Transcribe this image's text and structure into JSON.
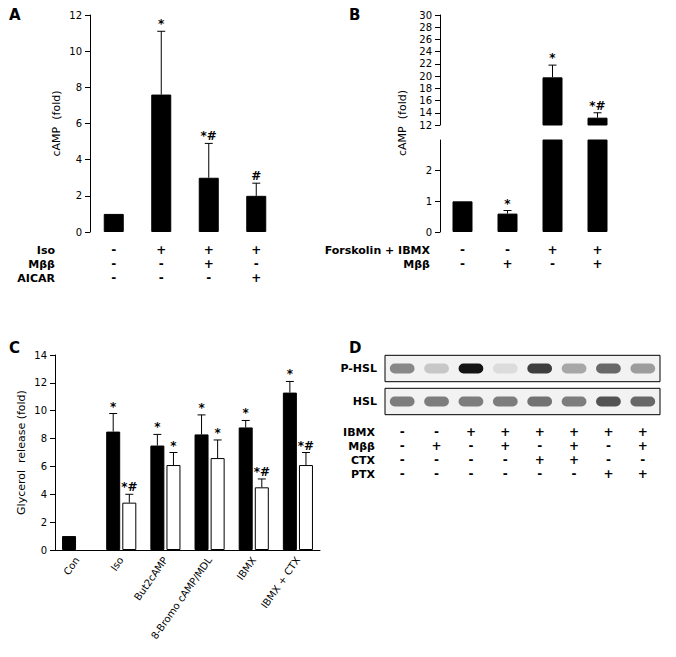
{
  "chart_data": [
    {
      "type": "bar",
      "panel": "A",
      "y_label": "cAMP  (fold)",
      "ylim": [
        0,
        12
      ],
      "yticks": [
        0,
        2,
        4,
        6,
        8,
        10,
        12
      ],
      "conditions": [
        {
          "label": "Iso",
          "marks": [
            "-",
            "+",
            "+",
            "+"
          ]
        },
        {
          "label": "Mββ",
          "marks": [
            "-",
            "-",
            "+",
            "-"
          ]
        },
        {
          "label": "AICAR",
          "marks": [
            "-",
            "-",
            "-",
            "+"
          ]
        }
      ],
      "series": [
        {
          "color": "#000000",
          "values": [
            1,
            7.6,
            3.0,
            2.0
          ],
          "errors": [
            null,
            3.5,
            1.9,
            0.7
          ],
          "annotations": [
            null,
            "*",
            "*#",
            "#"
          ]
        }
      ]
    },
    {
      "type": "bar",
      "panel": "B",
      "y_label": "cAMP  (fold)",
      "ylim": [
        0,
        30
      ],
      "yticks": [
        0,
        1,
        2,
        12,
        14,
        16,
        18,
        20,
        22,
        24,
        26,
        28,
        30
      ],
      "axis_break": [
        3,
        12
      ],
      "conditions": [
        {
          "label": "Forskolin + IBMX",
          "marks": [
            "-",
            "-",
            "+",
            "+"
          ]
        },
        {
          "label": "Mββ",
          "marks": [
            "-",
            "+",
            "-",
            "+"
          ]
        }
      ],
      "series": [
        {
          "color": "#000000",
          "values": [
            1,
            0.6,
            19.8,
            13.2
          ],
          "errors": [
            null,
            0.1,
            2.0,
            0.8
          ],
          "annotations": [
            null,
            "*",
            "*",
            "*#"
          ]
        }
      ]
    },
    {
      "type": "bar",
      "panel": "C",
      "y_label": "Glycerol  release (fold)",
      "categories": [
        "Con",
        "Iso",
        "But2cAMP",
        "8-Bromo cAMP/MDL",
        "IBMX",
        "IBMX + CTX"
      ],
      "ylim": [
        0,
        14
      ],
      "yticks": [
        0,
        2,
        4,
        6,
        8,
        10,
        12,
        14
      ],
      "series": [
        {
          "color": "#000000",
          "values": [
            1,
            8.5,
            7.5,
            8.3,
            8.8,
            11.3
          ],
          "errors": [
            null,
            1.3,
            0.8,
            1.4,
            0.5,
            0.8
          ],
          "annotations": [
            null,
            "*",
            "*",
            "*",
            "*",
            "*"
          ]
        },
        {
          "color": "#ffffff",
          "values": [
            null,
            3.4,
            6.1,
            6.6,
            4.5,
            6.1
          ],
          "errors": [
            null,
            0.6,
            0.9,
            1.3,
            0.6,
            0.9
          ],
          "annotations": [
            null,
            "*#",
            "*",
            "*",
            "*#",
            "*#"
          ]
        }
      ]
    }
  ],
  "blot": {
    "panel": "D",
    "rows": [
      {
        "label": "P-HSL",
        "intensity": [
          0.45,
          0.15,
          1.0,
          0.05,
          0.8,
          0.3,
          0.6,
          0.35
        ]
      },
      {
        "label": "HSL",
        "intensity": [
          0.5,
          0.5,
          0.5,
          0.5,
          0.55,
          0.5,
          0.7,
          0.6
        ]
      }
    ],
    "conditions": [
      {
        "label": "IBMX",
        "marks": [
          "-",
          "-",
          "+",
          "+",
          "+",
          "+",
          "+",
          "+"
        ]
      },
      {
        "label": "Mββ",
        "marks": [
          "-",
          "+",
          "-",
          "+",
          "-",
          "+",
          "-",
          "+"
        ]
      },
      {
        "label": "CTX",
        "marks": [
          "-",
          "-",
          "-",
          "-",
          "+",
          "+",
          "-",
          "-"
        ]
      },
      {
        "label": "PTX",
        "marks": [
          "-",
          "-",
          "-",
          "-",
          "-",
          "-",
          "+",
          "+"
        ]
      }
    ]
  }
}
